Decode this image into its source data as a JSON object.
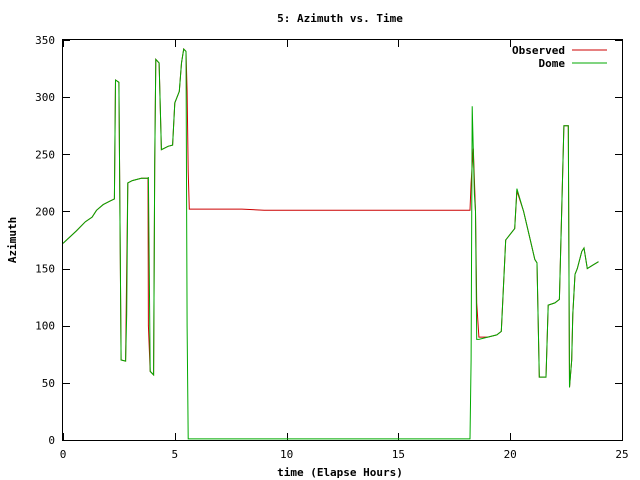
{
  "chart_data": {
    "type": "line",
    "title": "5: Azimuth vs. Time",
    "xlabel": "time (Elapse Hours)",
    "ylabel": "Azimuth",
    "xlim": [
      0,
      25
    ],
    "ylim": [
      0,
      350
    ],
    "xticks": [
      0,
      5,
      10,
      15,
      20,
      25
    ],
    "yticks": [
      0,
      50,
      100,
      150,
      200,
      250,
      300,
      350
    ],
    "grid": false,
    "legend_position": "top-right",
    "series": [
      {
        "name": "Observed",
        "color": "#cc0000",
        "points": [
          [
            0,
            172
          ],
          [
            0.6,
            183
          ],
          [
            1.0,
            191
          ],
          [
            1.3,
            195
          ],
          [
            1.5,
            201
          ],
          [
            1.8,
            206
          ],
          [
            2.1,
            209
          ],
          [
            2.3,
            211
          ],
          [
            2.35,
            315
          ],
          [
            2.5,
            313
          ],
          [
            2.6,
            70
          ],
          [
            2.8,
            69
          ],
          [
            2.85,
            150
          ],
          [
            2.9,
            225
          ],
          [
            3.1,
            227
          ],
          [
            3.5,
            229
          ],
          [
            3.8,
            229
          ],
          [
            3.82,
            100
          ],
          [
            3.9,
            60
          ],
          [
            4.05,
            57
          ],
          [
            4.1,
            240
          ],
          [
            4.15,
            333
          ],
          [
            4.3,
            330
          ],
          [
            4.4,
            254
          ],
          [
            4.7,
            257
          ],
          [
            4.9,
            258
          ],
          [
            5.0,
            295
          ],
          [
            5.2,
            305
          ],
          [
            5.3,
            330
          ],
          [
            5.4,
            342
          ],
          [
            5.5,
            340
          ],
          [
            5.55,
            305
          ],
          [
            5.6,
            235
          ],
          [
            5.65,
            202
          ],
          [
            6.0,
            202
          ],
          [
            7.0,
            202
          ],
          [
            8.0,
            202
          ],
          [
            9.0,
            201
          ],
          [
            10.0,
            201
          ],
          [
            12.0,
            201
          ],
          [
            14.0,
            201
          ],
          [
            16.0,
            201
          ],
          [
            18.2,
            201
          ],
          [
            18.25,
            225
          ],
          [
            18.35,
            255
          ],
          [
            18.45,
            200
          ],
          [
            18.5,
            120
          ],
          [
            18.6,
            90
          ],
          [
            19.0,
            90
          ],
          [
            19.4,
            92
          ],
          [
            19.6,
            95
          ],
          [
            19.8,
            175
          ],
          [
            20.2,
            185
          ],
          [
            20.3,
            218
          ],
          [
            20.6,
            200
          ],
          [
            20.9,
            175
          ],
          [
            21.1,
            158
          ],
          [
            21.2,
            155
          ],
          [
            21.3,
            55
          ],
          [
            21.6,
            55
          ],
          [
            21.7,
            118
          ],
          [
            22.0,
            120
          ],
          [
            22.2,
            123
          ],
          [
            22.4,
            275
          ],
          [
            22.6,
            275
          ],
          [
            22.65,
            46
          ],
          [
            22.75,
            70
          ],
          [
            22.8,
            110
          ],
          [
            22.9,
            145
          ],
          [
            23.0,
            150
          ],
          [
            23.2,
            165
          ],
          [
            23.3,
            168
          ],
          [
            23.45,
            150
          ],
          [
            23.7,
            153
          ],
          [
            23.95,
            156
          ]
        ]
      },
      {
        "name": "Dome",
        "color": "#00aa00",
        "points": [
          [
            0,
            172
          ],
          [
            0.6,
            183
          ],
          [
            1.0,
            191
          ],
          [
            1.3,
            195
          ],
          [
            1.5,
            201
          ],
          [
            1.8,
            206
          ],
          [
            2.1,
            209
          ],
          [
            2.3,
            211
          ],
          [
            2.35,
            315
          ],
          [
            2.5,
            313
          ],
          [
            2.6,
            70
          ],
          [
            2.8,
            69
          ],
          [
            2.85,
            110
          ],
          [
            2.9,
            225
          ],
          [
            3.1,
            227
          ],
          [
            3.5,
            229
          ],
          [
            3.8,
            229
          ],
          [
            3.82,
            230
          ],
          [
            3.9,
            60
          ],
          [
            4.05,
            57
          ],
          [
            4.1,
            240
          ],
          [
            4.15,
            333
          ],
          [
            4.3,
            330
          ],
          [
            4.4,
            254
          ],
          [
            4.7,
            257
          ],
          [
            4.9,
            258
          ],
          [
            5.0,
            295
          ],
          [
            5.2,
            305
          ],
          [
            5.3,
            330
          ],
          [
            5.4,
            342
          ],
          [
            5.5,
            340
          ],
          [
            5.55,
            100
          ],
          [
            5.6,
            1
          ],
          [
            6.0,
            1
          ],
          [
            8.0,
            1
          ],
          [
            10.0,
            1
          ],
          [
            12.0,
            1
          ],
          [
            14.0,
            1
          ],
          [
            16.0,
            1
          ],
          [
            18.2,
            1
          ],
          [
            18.25,
            70
          ],
          [
            18.3,
            292
          ],
          [
            18.4,
            215
          ],
          [
            18.45,
            200
          ],
          [
            18.5,
            88
          ],
          [
            18.6,
            88
          ],
          [
            19.0,
            90
          ],
          [
            19.4,
            92
          ],
          [
            19.6,
            95
          ],
          [
            19.8,
            175
          ],
          [
            20.2,
            185
          ],
          [
            20.3,
            220
          ],
          [
            20.6,
            200
          ],
          [
            20.9,
            175
          ],
          [
            21.1,
            158
          ],
          [
            21.2,
            155
          ],
          [
            21.3,
            55
          ],
          [
            21.6,
            55
          ],
          [
            21.7,
            118
          ],
          [
            22.0,
            120
          ],
          [
            22.2,
            123
          ],
          [
            22.4,
            275
          ],
          [
            22.6,
            275
          ],
          [
            22.65,
            46
          ],
          [
            22.75,
            70
          ],
          [
            22.8,
            110
          ],
          [
            22.9,
            145
          ],
          [
            23.0,
            150
          ],
          [
            23.2,
            165
          ],
          [
            23.3,
            168
          ],
          [
            23.45,
            150
          ],
          [
            23.7,
            153
          ],
          [
            23.95,
            156
          ]
        ]
      }
    ]
  }
}
